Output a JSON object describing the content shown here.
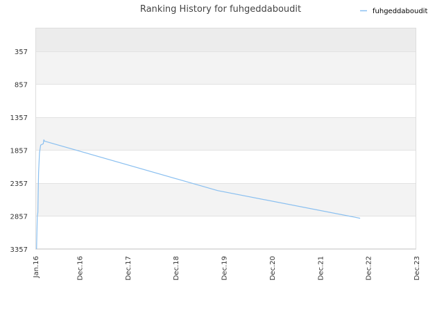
{
  "chart_data": {
    "type": "line",
    "title": "Ranking History for fuhgeddaboudit",
    "xlabel": "",
    "ylabel": "",
    "y_reversed": true,
    "ylim": [
      3357,
      0
    ],
    "yticks": [
      357,
      857,
      1357,
      1857,
      2357,
      2857,
      3357
    ],
    "yticklabels": [
      "357",
      "857",
      "1357",
      "1857",
      "2357",
      "2857",
      "3357"
    ],
    "xticks": [
      "2016-01-01",
      "2016-12-01",
      "2017-12-01",
      "2018-12-01",
      "2019-12-01",
      "2020-12-01",
      "2021-12-01",
      "2022-12-01",
      "2023-12-01"
    ],
    "xticklabels": [
      "Jan.16",
      "Dec.16",
      "Dec.17",
      "Dec.18",
      "Dec.19",
      "Dec.20",
      "Dec.21",
      "Dec.22",
      "Dec.23"
    ],
    "xlim": [
      "2016-01-01",
      "2023-12-01"
    ],
    "grid": true,
    "legend_position": "top-right",
    "series": [
      {
        "name": "fuhgeddaboudit",
        "color": "#89bff0",
        "points": [
          {
            "x": "2016-01-10",
            "y": 3357
          },
          {
            "x": "2016-01-15",
            "y": 2870
          },
          {
            "x": "2016-01-20",
            "y": 2800
          },
          {
            "x": "2016-01-25",
            "y": 2200
          },
          {
            "x": "2016-02-01",
            "y": 1900
          },
          {
            "x": "2016-02-10",
            "y": 1780
          },
          {
            "x": "2016-03-01",
            "y": 1760
          },
          {
            "x": "2016-03-05",
            "y": 1700
          },
          {
            "x": "2016-03-10",
            "y": 1720
          },
          {
            "x": "2019-10-15",
            "y": 2470
          },
          {
            "x": "2022-10-01",
            "y": 2890
          }
        ]
      }
    ]
  }
}
